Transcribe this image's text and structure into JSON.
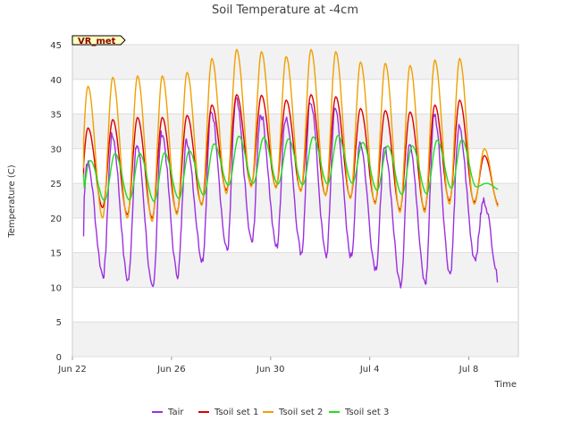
{
  "chart_data": {
    "type": "line",
    "title": "Soil Temperature at -4cm",
    "xlabel": "Time",
    "ylabel": "Temperature (C)",
    "site_label": "VR_met",
    "xlim": [
      0,
      18
    ],
    "ylim": [
      0,
      45
    ],
    "x_ticks": [
      {
        "x": 0,
        "label": "Jun 22"
      },
      {
        "x": 4,
        "label": "Jun 26"
      },
      {
        "x": 8,
        "label": "Jun 30"
      },
      {
        "x": 12,
        "label": "Jul 4"
      },
      {
        "x": 16,
        "label": "Jul 8"
      }
    ],
    "y_ticks": [
      0,
      5,
      10,
      15,
      20,
      25,
      30,
      35,
      40,
      45
    ],
    "grid": true,
    "legend_position": "bottom",
    "series": [
      {
        "name": "Tair",
        "color": "#9b30e0",
        "mins": [
          9.8,
          11.7,
          11.0,
          9.6,
          11.8,
          14.0,
          15.3,
          16.5,
          15.8,
          15.0,
          14.5,
          14.5,
          12.8,
          10.5,
          10.5,
          12.0,
          14.2,
          10.7
        ],
        "maxs": [
          28.0,
          32.0,
          30.5,
          32.3,
          31.0,
          35.5,
          37.0,
          35.0,
          34.5,
          37.0,
          35.8,
          31.0,
          30.0,
          31.0,
          35.0,
          33.0,
          22.5
        ]
      },
      {
        "name": "Tsoil set 1",
        "color": "#dd0000",
        "mins": [
          19.5,
          21.5,
          20.5,
          20.0,
          20.8,
          22.0,
          24.0,
          24.8,
          24.5,
          24.0,
          23.3,
          23.0,
          22.3,
          21.2,
          21.2,
          22.5,
          22.3,
          21.8
        ],
        "maxs": [
          33.0,
          34.2,
          34.5,
          34.5,
          34.8,
          36.3,
          37.8,
          37.7,
          37.0,
          37.8,
          37.5,
          35.8,
          35.5,
          35.3,
          36.3,
          37.0,
          29.0
        ]
      },
      {
        "name": "Tsoil set 2",
        "color": "#f0a000",
        "mins": [
          19.2,
          20.0,
          20.0,
          19.5,
          20.5,
          21.8,
          23.5,
          24.5,
          24.3,
          23.8,
          23.2,
          22.8,
          22.0,
          20.8,
          20.8,
          22.0,
          22.0,
          21.5
        ],
        "maxs": [
          39.0,
          40.3,
          40.5,
          40.5,
          41.0,
          43.0,
          44.3,
          44.0,
          43.3,
          44.3,
          44.0,
          42.5,
          42.3,
          42.0,
          42.8,
          43.0,
          30.0
        ]
      },
      {
        "name": "Tsoil set 3",
        "color": "#22dd22",
        "mins": [
          21.8,
          22.5,
          22.6,
          22.4,
          22.8,
          23.3,
          24.7,
          25.0,
          24.9,
          24.8,
          24.9,
          25.0,
          24.0,
          23.4,
          23.5,
          24.3,
          24.5,
          24.0
        ],
        "maxs": [
          28.3,
          29.3,
          29.3,
          29.4,
          29.7,
          30.7,
          31.8,
          31.6,
          31.4,
          31.7,
          31.9,
          30.9,
          30.4,
          30.4,
          31.2,
          31.3,
          25.0
        ]
      }
    ]
  }
}
